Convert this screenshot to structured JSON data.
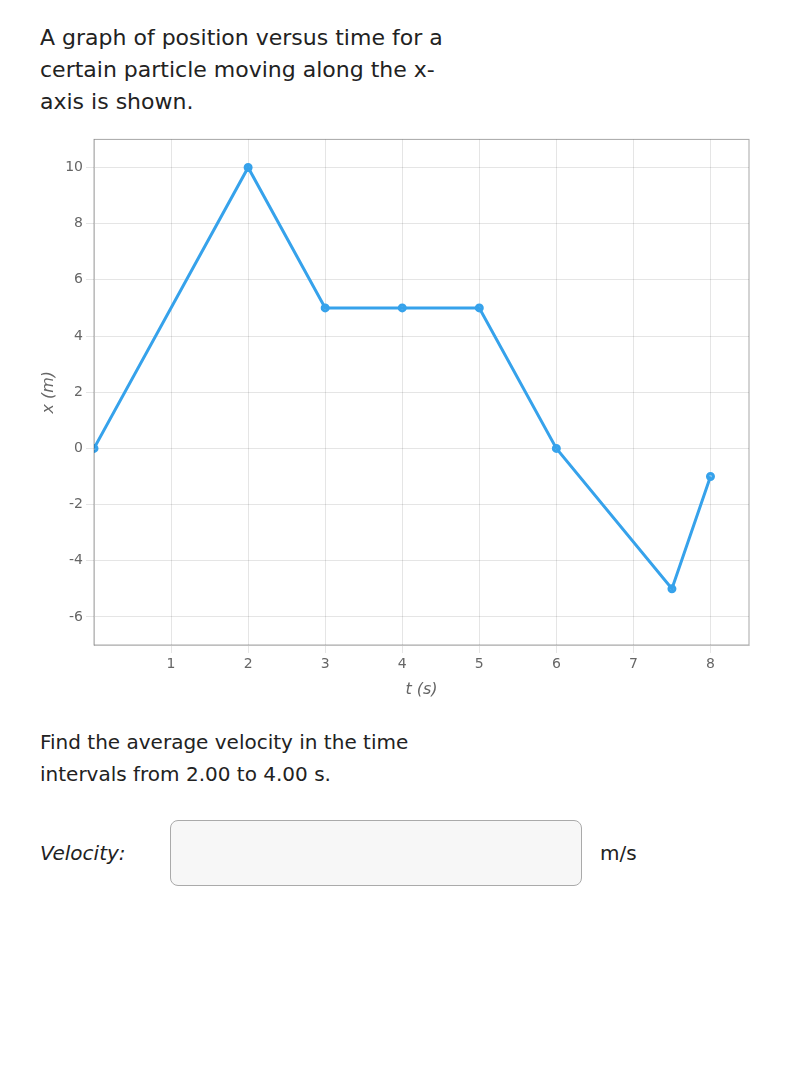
{
  "chart_data": {
    "type": "line",
    "title": "A graph of position versus time for a\ncertain particle moving along the x-\naxis is shown.",
    "x": [
      0,
      2,
      3,
      4,
      5,
      6,
      7.5,
      8
    ],
    "values": [
      0,
      10,
      5,
      5,
      5,
      0,
      -5,
      -1
    ],
    "x_label": "t (s)",
    "y_label": "x (m)",
    "xlim": [
      0,
      8.5
    ],
    "ylim": [
      -7,
      11
    ],
    "xticks": [
      1,
      2,
      3,
      4,
      5,
      6,
      7,
      8
    ],
    "yticks": [
      -6,
      -4,
      -2,
      0,
      2,
      4,
      6,
      8,
      10
    ],
    "grid": true,
    "annotations": [
      "Find the average velocity in the time",
      "intervals from 2.00 to 4.00 s.",
      "Velocity:",
      "m/s"
    ]
  }
}
